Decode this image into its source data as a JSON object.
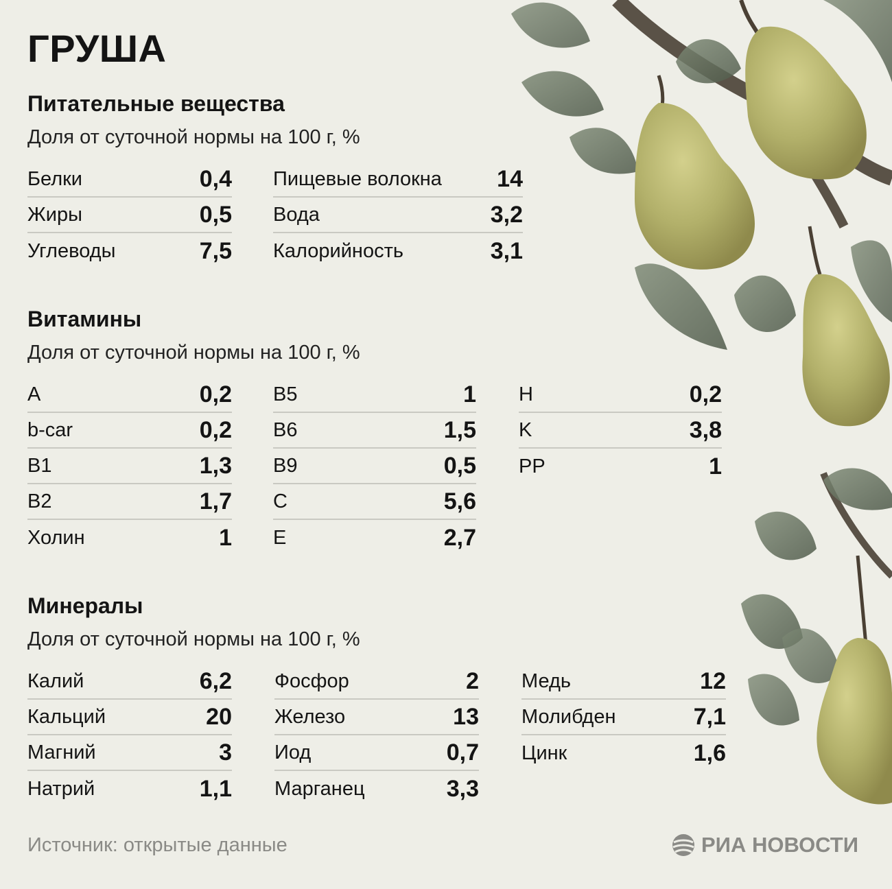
{
  "title": "ГРУША",
  "sections": {
    "nutrients": {
      "title": "Питательные вещества",
      "subtitle": "Доля от суточной нормы на 100 г, %",
      "col1": [
        {
          "name": "Белки",
          "value": "0,4"
        },
        {
          "name": "Жиры",
          "value": "0,5"
        },
        {
          "name": "Углеводы",
          "value": "7,5"
        }
      ],
      "col2": [
        {
          "name": "Пищевые волокна",
          "value": "14"
        },
        {
          "name": "Вода",
          "value": "3,2"
        },
        {
          "name": "Калорийность",
          "value": "3,1"
        }
      ]
    },
    "vitamins": {
      "title": "Витамины",
      "subtitle": "Доля от суточной нормы на 100 г, %",
      "col1": [
        {
          "name": "A",
          "value": "0,2"
        },
        {
          "name": "b-car",
          "value": "0,2"
        },
        {
          "name": "B1",
          "value": "1,3"
        },
        {
          "name": "B2",
          "value": "1,7"
        },
        {
          "name": "Холин",
          "value": "1"
        }
      ],
      "col2": [
        {
          "name": "B5",
          "value": "1"
        },
        {
          "name": "B6",
          "value": "1,5"
        },
        {
          "name": "B9",
          "value": "0,5"
        },
        {
          "name": "C",
          "value": "5,6"
        },
        {
          "name": "E",
          "value": "2,7"
        }
      ],
      "col3": [
        {
          "name": "H",
          "value": "0,2"
        },
        {
          "name": "K",
          "value": "3,8"
        },
        {
          "name": "PP",
          "value": "1"
        }
      ]
    },
    "minerals": {
      "title": "Минералы",
      "subtitle": "Доля от суточной нормы на 100 г, %",
      "col1": [
        {
          "name": "Калий",
          "value": "6,2"
        },
        {
          "name": "Кальций",
          "value": "20"
        },
        {
          "name": "Магний",
          "value": "3"
        },
        {
          "name": "Натрий",
          "value": "1,1"
        }
      ],
      "col2": [
        {
          "name": "Фосфор",
          "value": "2"
        },
        {
          "name": "Железо",
          "value": "13"
        },
        {
          "name": "Иод",
          "value": "0,7"
        },
        {
          "name": "Марганец",
          "value": "3,3"
        }
      ],
      "col3": [
        {
          "name": "Медь",
          "value": "12"
        },
        {
          "name": "Молибден",
          "value": "7,1"
        },
        {
          "name": "Цинк",
          "value": "1,6"
        }
      ]
    }
  },
  "source": "Источник: открытые данные",
  "logo": "РИА НОВОСТИ",
  "colors": {
    "background": "#eeeee7",
    "text": "#141414",
    "muted": "#8a8a86",
    "divider": "#c9c9c2",
    "pear": "#b5b56a",
    "leaf": "#5e6a58"
  }
}
